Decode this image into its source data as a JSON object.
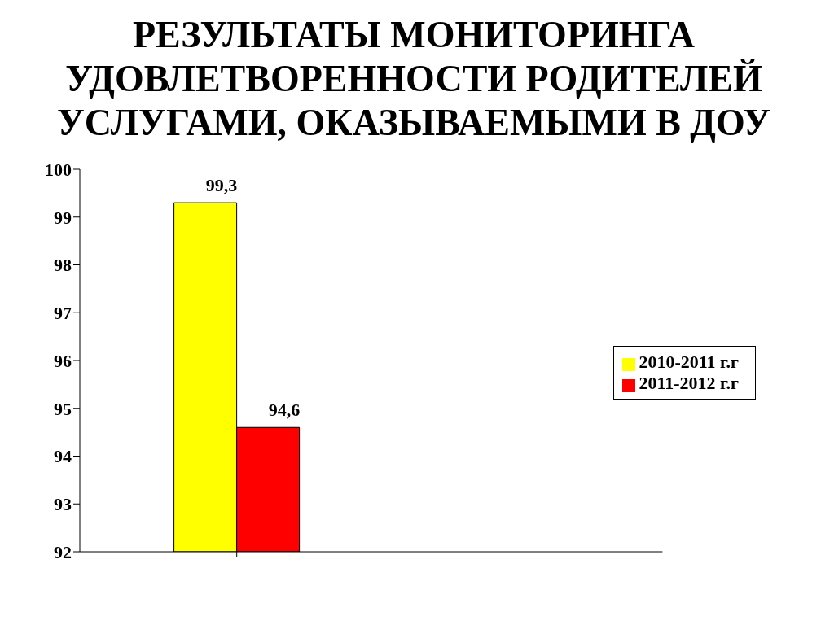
{
  "chart_data": {
    "type": "bar",
    "title": "РЕЗУЛЬТАТЫ МОНИТОРИНГА УДОВЛЕТВОРЕННОСТИ РОДИТЕЛЕЙ УСЛУГАМИ, ОКАЗЫВАЕМЫМИ В ДОУ",
    "categories": [
      null
    ],
    "series": [
      {
        "name": "2010-2011 г.г",
        "color": "#ffff00",
        "values": [
          99.3
        ],
        "value_labels": [
          "99,3"
        ]
      },
      {
        "name": "2011-2012 г.г",
        "color": "#ff0000",
        "values": [
          94.6
        ],
        "value_labels": [
          "94,6"
        ]
      }
    ],
    "ylim": [
      92,
      100
    ],
    "yticks": [
      92,
      93,
      94,
      95,
      96,
      97,
      98,
      99,
      100
    ],
    "legend": "right"
  }
}
